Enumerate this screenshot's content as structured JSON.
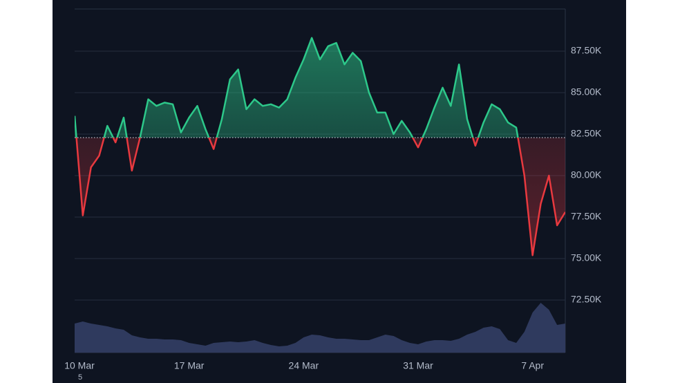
{
  "chart_data": {
    "type": "baseline",
    "categories": [
      "10 Mar",
      null,
      null,
      null,
      null,
      null,
      null,
      null,
      null,
      null,
      null,
      null,
      null,
      null,
      "17 Mar",
      null,
      null,
      null,
      null,
      null,
      null,
      null,
      null,
      null,
      null,
      null,
      null,
      null,
      "24 Mar",
      null,
      null,
      null,
      null,
      null,
      null,
      null,
      null,
      null,
      null,
      null,
      null,
      null,
      "31 Mar",
      null,
      null,
      null,
      null,
      null,
      null,
      null,
      null,
      null,
      null,
      null,
      null,
      null,
      "7 Apr",
      null,
      null,
      null,
      null
    ],
    "values": [
      83600,
      77600,
      80500,
      81200,
      83000,
      82000,
      83500,
      80300,
      82300,
      84600,
      84200,
      84400,
      84300,
      82600,
      83500,
      84200,
      82800,
      81600,
      83400,
      85800,
      86400,
      84000,
      84600,
      84200,
      84300,
      84100,
      84600,
      85900,
      87000,
      88300,
      87000,
      87800,
      88000,
      86700,
      87400,
      86900,
      85000,
      83800,
      83800,
      82500,
      83300,
      82600,
      81700,
      82800,
      84100,
      85300,
      84200,
      86700,
      83400,
      81800,
      83200,
      84300,
      84000,
      83200,
      82900,
      80000,
      75200,
      78300,
      80000,
      77000,
      77800
    ],
    "volume": [
      42,
      45,
      42,
      40,
      38,
      35,
      33,
      25,
      22,
      20,
      20,
      19,
      19,
      18,
      14,
      12,
      10,
      14,
      15,
      16,
      15,
      16,
      18,
      14,
      11,
      9,
      10,
      14,
      22,
      26,
      25,
      22,
      20,
      20,
      19,
      18,
      18,
      22,
      26,
      24,
      18,
      14,
      12,
      16,
      18,
      18,
      17,
      20,
      26,
      30,
      36,
      38,
      34,
      18,
      14,
      30,
      58,
      72,
      62,
      40,
      42
    ],
    "baseline": 82290,
    "ylim": [
      69333,
      90042
    ],
    "yticks": [
      {
        "value": 72500,
        "label": "72.50K"
      },
      {
        "value": 75000,
        "label": "75.00K"
      },
      {
        "value": 77500,
        "label": "77.50K"
      },
      {
        "value": 80000,
        "label": "80.00K"
      },
      {
        "value": 82500,
        "label": "82.50K"
      },
      {
        "value": 85000,
        "label": "85.00K"
      },
      {
        "value": 87500,
        "label": "87.50K"
      }
    ],
    "grid": true,
    "color_up": "#2dc88a",
    "color_down": "#e8393f",
    "volume_color": "#2f3a5e",
    "footnote": "5"
  }
}
